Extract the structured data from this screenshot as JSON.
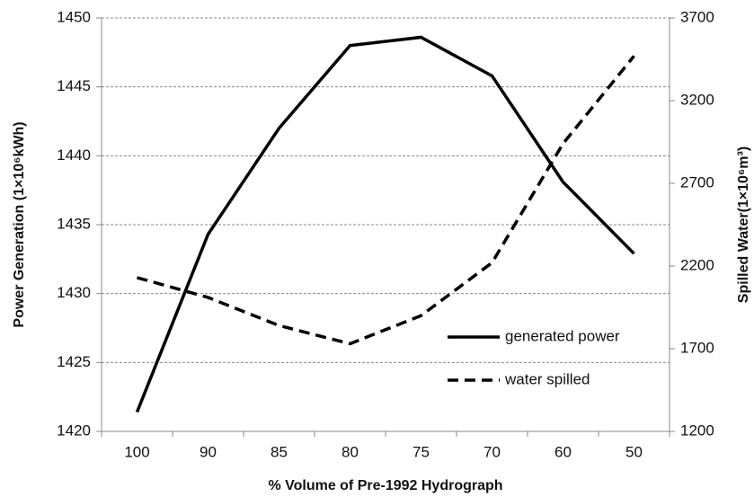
{
  "chart_data": {
    "type": "line",
    "x_label": "% Volume of Pre-1992 Hydrograph",
    "y_label": "Power Generation (1×10⁶kWh)",
    "y2_label": "Spilled Water(1×10⁶m³)",
    "categories": [
      "100",
      "90",
      "85",
      "80",
      "75",
      "70",
      "60",
      "50"
    ],
    "series": [
      {
        "name": "generated power",
        "color": "#000000",
        "dash": false,
        "values": [
          1421.4,
          1434.3,
          1442.0,
          1448.0,
          1448.6,
          1445.8,
          1438.1,
          1432.9
        ]
      },
      {
        "name": "water spilled",
        "color": "#000000",
        "dash": true,
        "axis": "y2",
        "values": [
          2130,
          2010,
          1840,
          1730,
          1900,
          2220,
          2940,
          3470
        ]
      }
    ],
    "ylim": [
      1420,
      1450
    ],
    "yticks": [
      1420,
      1425,
      1430,
      1435,
      1440,
      1445,
      1450
    ],
    "y2lim": [
      1200,
      3700
    ],
    "y2ticks": [
      1200,
      1700,
      2200,
      2700,
      3200,
      3700
    ],
    "grid": true,
    "legend": "lower right"
  }
}
